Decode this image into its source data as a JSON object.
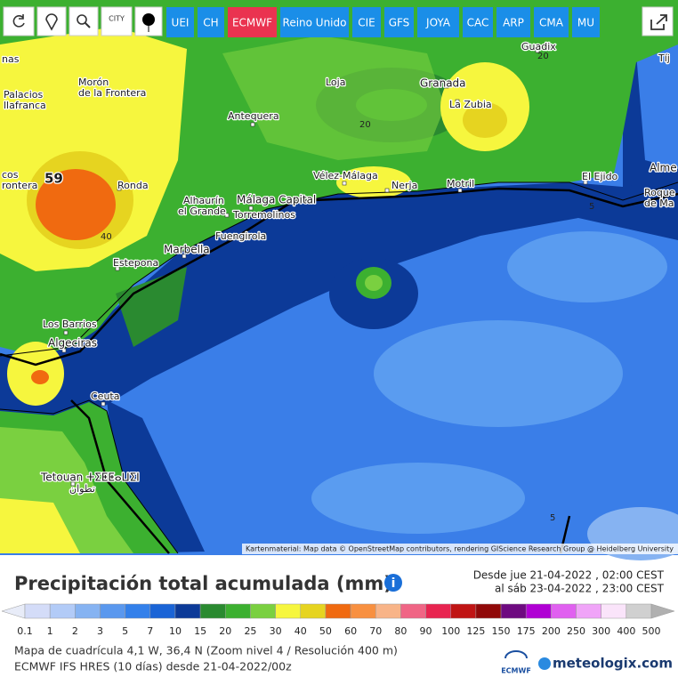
{
  "toolbar": {
    "city_icon": "CITY",
    "models": [
      {
        "label": "UEI",
        "color": "#1a8ee8"
      },
      {
        "label": "CH",
        "color": "#1a8ee8"
      },
      {
        "label": "ECMWF",
        "color": "#ea3350"
      },
      {
        "label": "Reino Unido",
        "color": "#1a8ee8"
      },
      {
        "label": "CIE",
        "color": "#1a8ee8"
      },
      {
        "label": "GFS",
        "color": "#1a8ee8"
      },
      {
        "label": "JOYA",
        "color": "#1a8ee8"
      },
      {
        "label": "CAC",
        "color": "#1a8ee8"
      },
      {
        "label": "ARP",
        "color": "#1a8ee8"
      },
      {
        "label": "CMA",
        "color": "#1a8ee8"
      },
      {
        "label": "MU",
        "color": "#1a8ee8"
      }
    ]
  },
  "map": {
    "labels": [
      "nas",
      "Morón",
      "de la Frontera",
      "Palacios",
      "llafranca",
      "Loja",
      "Granada",
      "La Zubia",
      "Antequera",
      "Guadix",
      "Tíj",
      "cos",
      "rontera",
      "Ronda",
      "Alhaurín",
      "el Grande",
      "Málaga Capital",
      "Torremolinos",
      "Vélez-Málaga",
      "Nerja",
      "Motril",
      "El Ejido",
      "Alme",
      "Roque",
      "de Ma",
      "Fuengirola",
      "Marbella",
      "Estepona",
      "Los Barrios",
      "Algeciras",
      "Ceuta",
      "Tetouan ⵜⵉⵟⵟⴰⵡⵉⵏ",
      "تطوان"
    ],
    "contours": [
      59,
      40,
      20,
      20,
      5,
      5
    ],
    "attribution": "Kartenmaterial: Map data © OpenStreetMap contributors, rendering GIScience Research Group @ Heidelberg University"
  },
  "title": "Precipitación total acumulada (mm)",
  "period": [
    "Desde jue 21-04-2022 , 02:00 CEST",
    "al sáb 23-04-2022 , 23:00 CEST"
  ],
  "legend": {
    "labels": [
      0.1,
      1,
      2,
      3,
      5,
      7,
      10,
      15,
      20,
      25,
      30,
      40,
      50,
      60,
      70,
      80,
      90,
      100,
      125,
      150,
      175,
      200,
      250,
      300,
      400,
      500
    ],
    "colors": [
      "#d4dcf8",
      "#b2cbf7",
      "#86b3f2",
      "#5a98ee",
      "#3380ea",
      "#1a64d6",
      "#0c3a98",
      "#2a8a30",
      "#3cb030",
      "#7ad040",
      "#f6f63e",
      "#e6d420",
      "#f06a10",
      "#f89040",
      "#f8b488",
      "#f06585",
      "#e82450",
      "#c01414",
      "#900808",
      "#6e0a80",
      "#b000d4",
      "#e060f0",
      "#f0a4f8",
      "#fae4fa",
      "#d0d0d0"
    ]
  },
  "footer": [
    "Mapa de cuadrícula 4,1 W, 36,4 N (Zoom nivel 4 / Resolución 400 m)",
    "ECMWF IFS HRES (10 días) desde 21-04-2022/00z"
  ],
  "logos": [
    "ECMWF",
    "meteologix.com"
  ]
}
